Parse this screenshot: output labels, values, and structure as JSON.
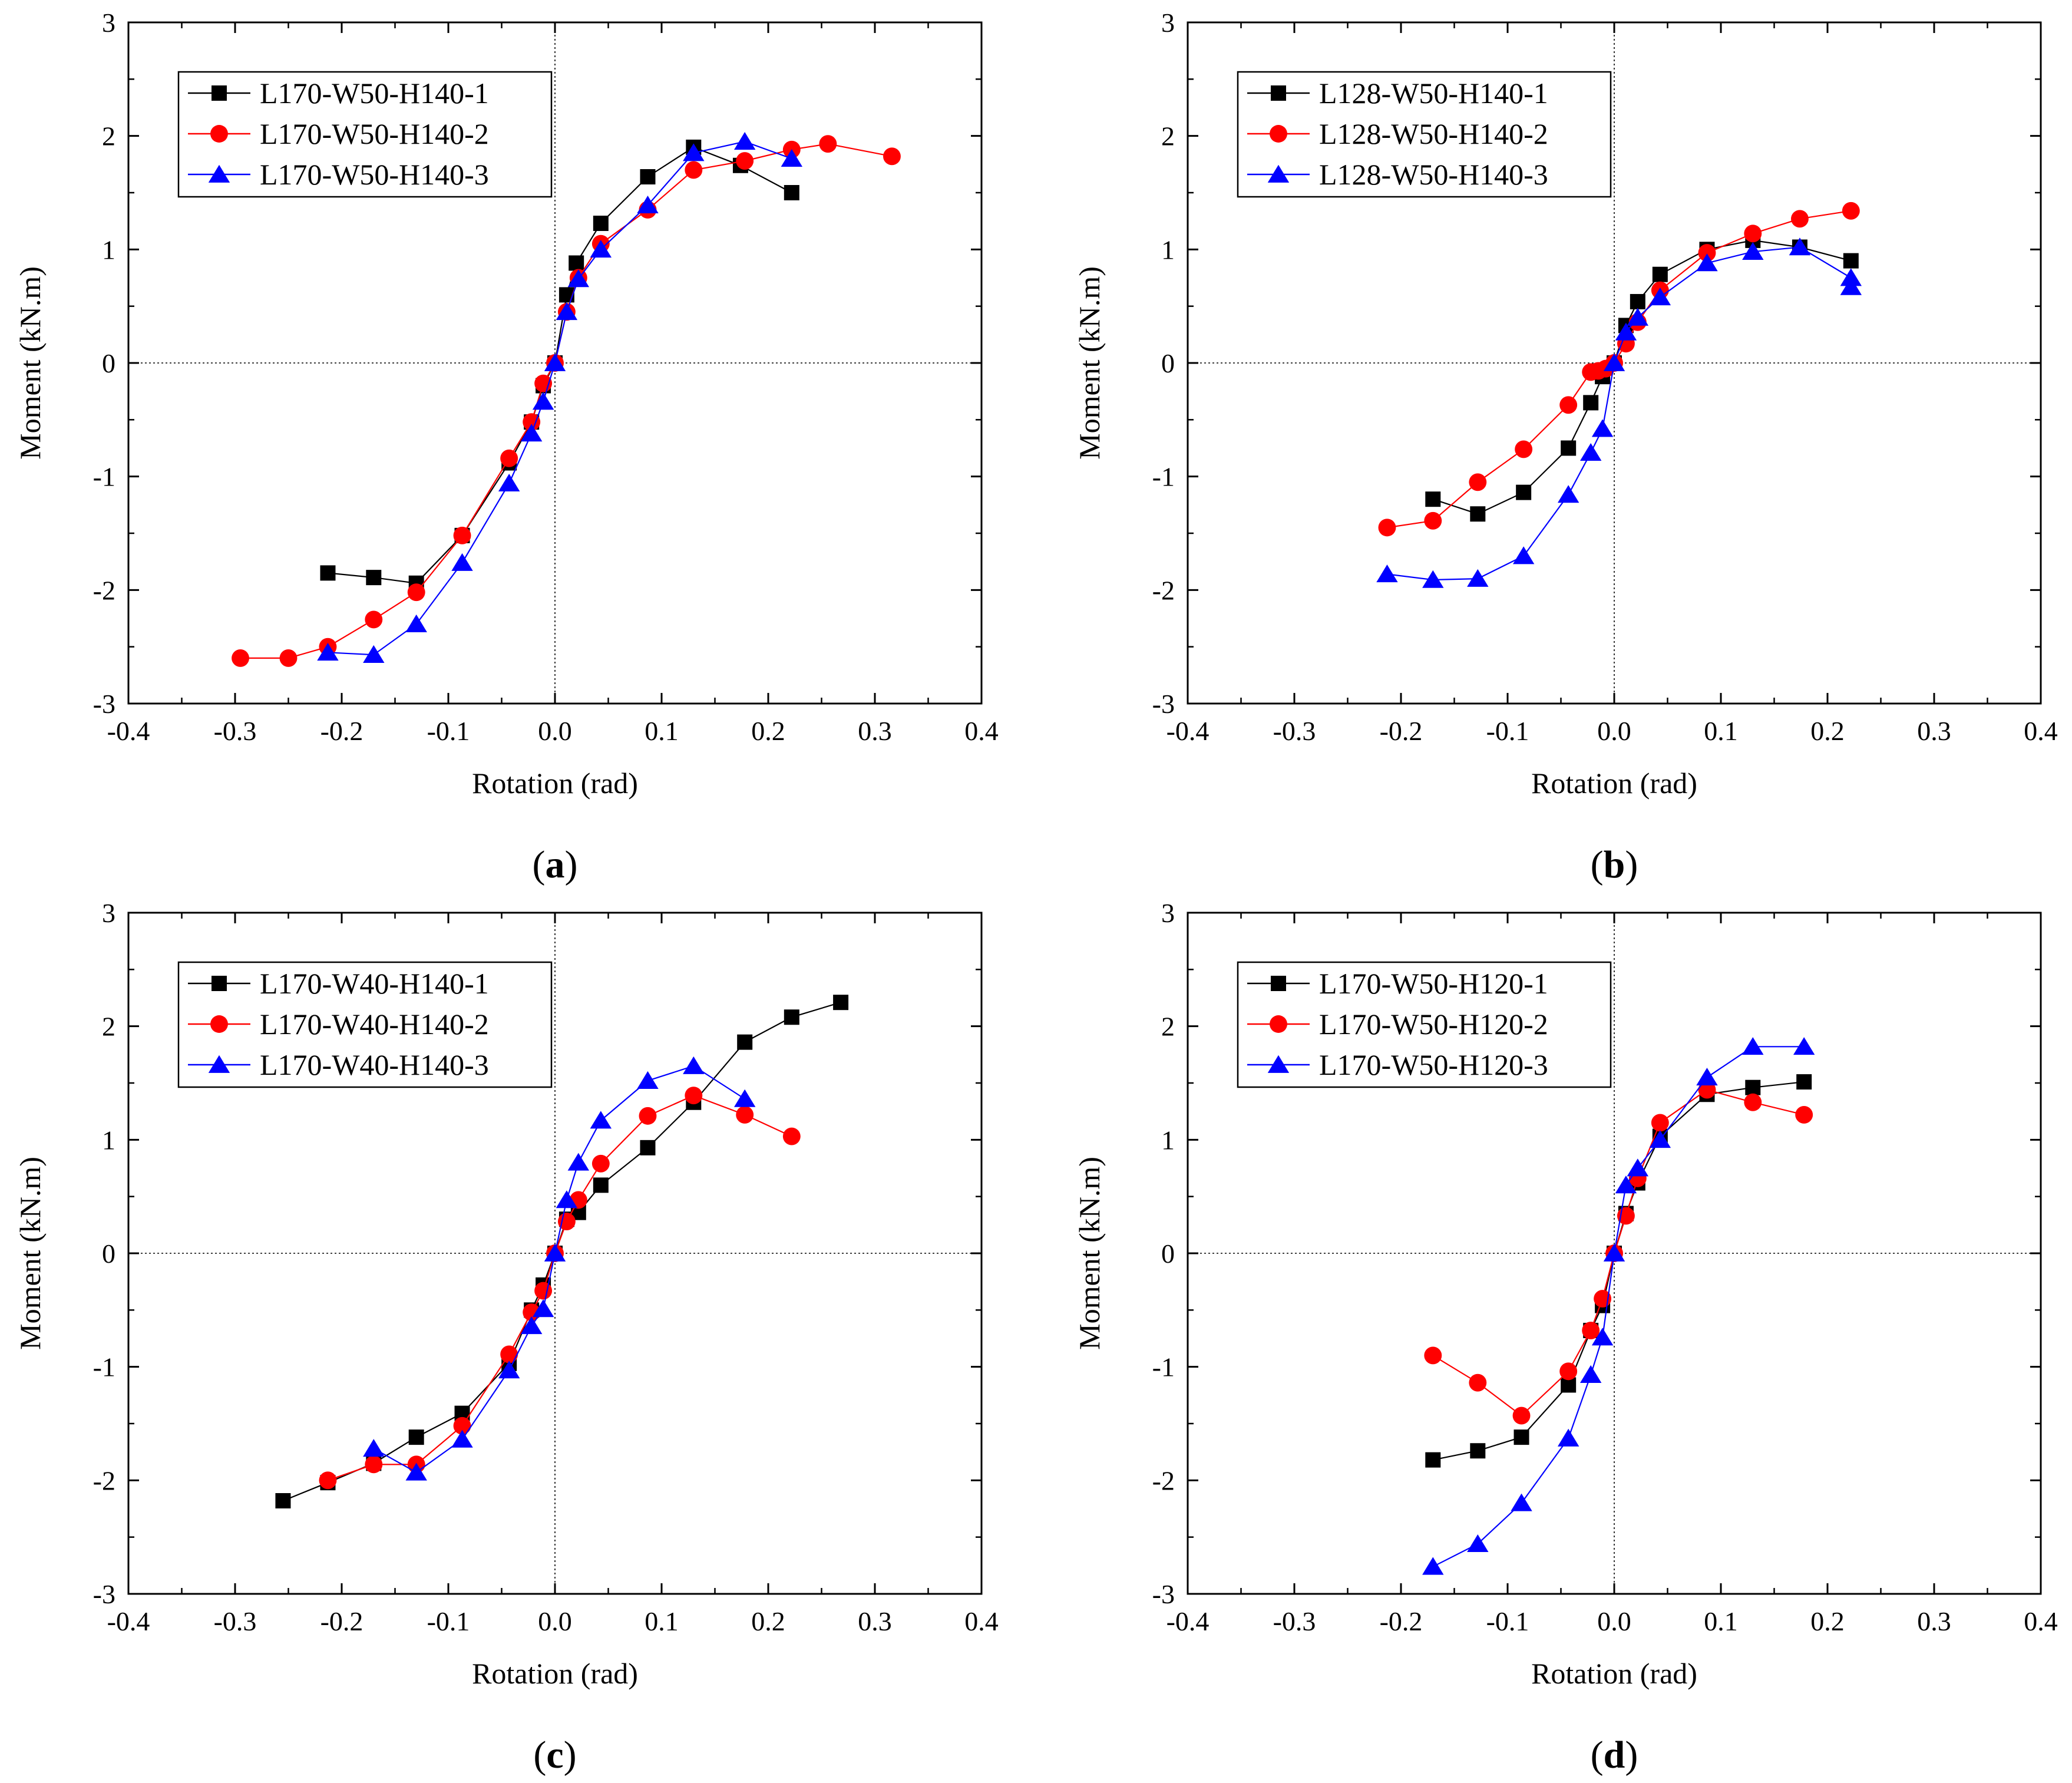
{
  "figure": {
    "series_styles": [
      {
        "color": "#000000",
        "marker": "square"
      },
      {
        "color": "#ff0000",
        "marker": "circle"
      },
      {
        "color": "#0000ff",
        "marker": "triangle"
      }
    ]
  },
  "chart_data": [
    {
      "type": "line",
      "panel_label": "(a)",
      "xlabel": "Rotation (rad)",
      "ylabel": "Moment (kN.m)",
      "xlim": [
        -0.4,
        0.4
      ],
      "ylim": [
        -3,
        3
      ],
      "xticks": [
        "-0.4",
        "-0.3",
        "-0.2",
        "-0.1",
        "0.0",
        "0.1",
        "0.2",
        "0.3",
        "0.4"
      ],
      "yticks": [
        "-3",
        "-2",
        "-1",
        "0",
        "1",
        "2",
        "3"
      ],
      "legend_position": "top-left",
      "series": [
        {
          "name": "L170-W50-H140-1",
          "x": [
            -0.213,
            -0.17,
            -0.13,
            -0.087,
            -0.043,
            -0.022,
            -0.011,
            0,
            0.011,
            0.02,
            0.043,
            0.087,
            0.13,
            0.174,
            0.222
          ],
          "y": [
            -1.85,
            -1.89,
            -1.94,
            -1.52,
            -0.88,
            -0.52,
            -0.2,
            0,
            0.6,
            0.88,
            1.23,
            1.64,
            1.9,
            1.74,
            1.5
          ]
        },
        {
          "name": "L170-W50-H140-2",
          "x": [
            -0.295,
            -0.25,
            -0.213,
            -0.17,
            -0.13,
            -0.087,
            -0.043,
            -0.022,
            -0.011,
            0,
            0.011,
            0.022,
            0.043,
            0.087,
            0.13,
            0.178,
            0.222,
            0.256,
            0.316
          ],
          "y": [
            -2.6,
            -2.6,
            -2.5,
            -2.26,
            -2.02,
            -1.52,
            -0.84,
            -0.52,
            -0.18,
            0,
            0.45,
            0.75,
            1.05,
            1.35,
            1.7,
            1.78,
            1.88,
            1.93,
            1.82
          ]
        },
        {
          "name": "L170-W50-H140-3",
          "x": [
            -0.213,
            -0.17,
            -0.13,
            -0.087,
            -0.043,
            -0.022,
            -0.011,
            0,
            0.011,
            0.022,
            0.043,
            0.087,
            0.13,
            0.178,
            0.222
          ],
          "y": [
            -2.55,
            -2.57,
            -2.3,
            -1.76,
            -1.06,
            -0.62,
            -0.34,
            0,
            0.45,
            0.74,
            1.0,
            1.39,
            1.85,
            1.95,
            1.8
          ]
        }
      ]
    },
    {
      "type": "line",
      "panel_label": "(b)",
      "xlabel": "Rotation (rad)",
      "ylabel": "Moment (kN.m)",
      "xlim": [
        -0.4,
        0.4
      ],
      "ylim": [
        -3,
        3
      ],
      "xticks": [
        "-0.4",
        "-0.3",
        "-0.2",
        "-0.1",
        "0.0",
        "0.1",
        "0.2",
        "0.3",
        "0.4"
      ],
      "yticks": [
        "-3",
        "-2",
        "-1",
        "0",
        "1",
        "2",
        "3"
      ],
      "legend_position": "top-left",
      "series": [
        {
          "name": "L128-W50-H140-1",
          "x": [
            -0.17,
            -0.128,
            -0.085,
            -0.043,
            -0.022,
            -0.011,
            0,
            0.011,
            0.022,
            0.043,
            0.087,
            0.13,
            0.174,
            0.222
          ],
          "y": [
            -1.2,
            -1.33,
            -1.14,
            -0.75,
            -0.35,
            -0.12,
            0,
            0.33,
            0.54,
            0.78,
            1.0,
            1.08,
            1.02,
            0.9
          ]
        },
        {
          "name": "L128-W50-H140-2",
          "x": [
            -0.213,
            -0.17,
            -0.128,
            -0.085,
            -0.043,
            -0.022,
            -0.015,
            -0.008,
            0,
            0.011,
            0.022,
            0.043,
            0.087,
            0.13,
            0.174,
            0.222
          ],
          "y": [
            -1.45,
            -1.39,
            -1.05,
            -0.76,
            -0.37,
            -0.08,
            -0.07,
            -0.05,
            0,
            0.17,
            0.36,
            0.64,
            0.97,
            1.14,
            1.27,
            1.34
          ]
        },
        {
          "name": "L128-W50-H140-3",
          "x": [
            -0.213,
            -0.17,
            -0.128,
            -0.085,
            -0.043,
            -0.022,
            -0.011,
            0,
            0.011,
            0.022,
            0.043,
            0.087,
            0.13,
            0.174,
            0.222,
            0.222
          ],
          "y": [
            -1.86,
            -1.91,
            -1.9,
            -1.7,
            -1.16,
            -0.79,
            -0.58,
            0,
            0.27,
            0.4,
            0.58,
            0.88,
            0.98,
            1.02,
            0.75,
            0.67
          ]
        }
      ]
    },
    {
      "type": "line",
      "panel_label": "(c)",
      "xlabel": "Rotation (rad)",
      "ylabel": "Moment (kN.m)",
      "xlim": [
        -0.4,
        0.4
      ],
      "ylim": [
        -3,
        3
      ],
      "xticks": [
        "-0.4",
        "-0.3",
        "-0.2",
        "-0.1",
        "0.0",
        "0.1",
        "0.2",
        "0.3",
        "0.4"
      ],
      "yticks": [
        "-3",
        "-2",
        "-1",
        "0",
        "1",
        "2",
        "3"
      ],
      "legend_position": "top-left",
      "series": [
        {
          "name": "L170-W40-H140-1",
          "x": [
            -0.255,
            -0.213,
            -0.17,
            -0.13,
            -0.087,
            -0.043,
            -0.022,
            -0.011,
            0,
            0.011,
            0.022,
            0.043,
            0.087,
            0.13,
            0.178,
            0.222,
            0.268
          ],
          "y": [
            -2.18,
            -2.02,
            -1.85,
            -1.62,
            -1.41,
            -0.97,
            -0.5,
            -0.28,
            0,
            0.3,
            0.36,
            0.6,
            0.93,
            1.33,
            1.86,
            2.08,
            2.21
          ]
        },
        {
          "name": "L170-W40-H140-2",
          "x": [
            -0.213,
            -0.17,
            -0.13,
            -0.087,
            -0.043,
            -0.022,
            -0.011,
            0,
            0.011,
            0.022,
            0.043,
            0.087,
            0.13,
            0.178,
            0.222
          ],
          "y": [
            -2.0,
            -1.86,
            -1.86,
            -1.52,
            -0.89,
            -0.52,
            -0.33,
            0,
            0.28,
            0.47,
            0.79,
            1.21,
            1.39,
            1.22,
            1.03
          ]
        },
        {
          "name": "L170-W40-H140-3",
          "x": [
            -0.17,
            -0.13,
            -0.087,
            -0.043,
            -0.022,
            -0.011,
            0,
            0.011,
            0.022,
            0.043,
            0.087,
            0.13,
            0.178
          ],
          "y": [
            -1.72,
            -1.93,
            -1.64,
            -1.03,
            -0.64,
            -0.49,
            0,
            0.47,
            0.8,
            1.17,
            1.52,
            1.65,
            1.36
          ]
        }
      ]
    },
    {
      "type": "line",
      "panel_label": "(d)",
      "xlabel": "Rotation (rad)",
      "ylabel": "Moment (kN.m)",
      "xlim": [
        -0.4,
        0.4
      ],
      "ylim": [
        -3,
        3
      ],
      "xticks": [
        "-0.4",
        "-0.3",
        "-0.2",
        "-0.1",
        "0.0",
        "0.1",
        "0.2",
        "0.3",
        "0.4"
      ],
      "yticks": [
        "-3",
        "-2",
        "-1",
        "0",
        "1",
        "2",
        "3"
      ],
      "legend_position": "top-left",
      "series": [
        {
          "name": "L170-W50-H120-1",
          "x": [
            -0.17,
            -0.128,
            -0.087,
            -0.043,
            -0.022,
            -0.011,
            0,
            0.011,
            0.022,
            0.043,
            0.087,
            0.13,
            0.178
          ],
          "y": [
            -1.82,
            -1.74,
            -1.62,
            -1.16,
            -0.68,
            -0.46,
            0,
            0.35,
            0.62,
            1.03,
            1.4,
            1.46,
            1.51
          ]
        },
        {
          "name": "L170-W50-H120-2",
          "x": [
            -0.17,
            -0.128,
            -0.087,
            -0.043,
            -0.022,
            -0.011,
            0,
            0.011,
            0.022,
            0.043,
            0.087,
            0.13,
            0.178
          ],
          "y": [
            -0.9,
            -1.14,
            -1.43,
            -1.04,
            -0.68,
            -0.4,
            0,
            0.33,
            0.66,
            1.15,
            1.44,
            1.33,
            1.22
          ]
        },
        {
          "name": "L170-W50-H120-3",
          "x": [
            -0.17,
            -0.128,
            -0.087,
            -0.043,
            -0.022,
            -0.011,
            0,
            0.011,
            0.022,
            0.043,
            0.087,
            0.13,
            0.178
          ],
          "y": [
            -2.76,
            -2.56,
            -2.2,
            -1.63,
            -1.07,
            -0.74,
            0,
            0.6,
            0.75,
            1.0,
            1.55,
            1.82,
            1.82
          ]
        }
      ]
    }
  ]
}
